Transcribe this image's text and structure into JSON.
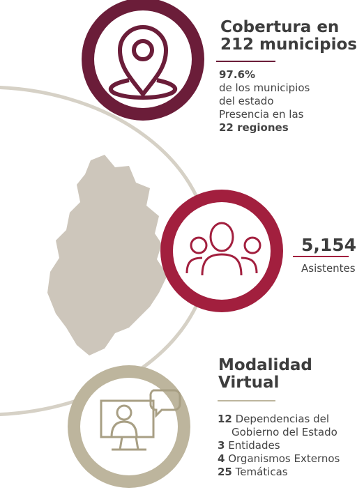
{
  "section1": {
    "title": [
      "Cobertura en",
      "212 municipios"
    ],
    "lines": [
      "97.6%",
      "de los municipios",
      "del estado",
      "Presencia en las",
      "22 regiones"
    ]
  },
  "section2": {
    "number": "5,154",
    "label": "Asistentes"
  },
  "section3": {
    "title": [
      "Modalidad",
      "Virtual"
    ],
    "items": [
      {
        "number": "12",
        "text": "Dependencias del",
        "text2": "Gobierno del Estado"
      },
      {
        "number": "3",
        "text": "Entidades"
      },
      {
        "number": "4",
        "text": "Organismos Externos"
      },
      {
        "number": "25",
        "text": "Temáticas"
      }
    ]
  }
}
